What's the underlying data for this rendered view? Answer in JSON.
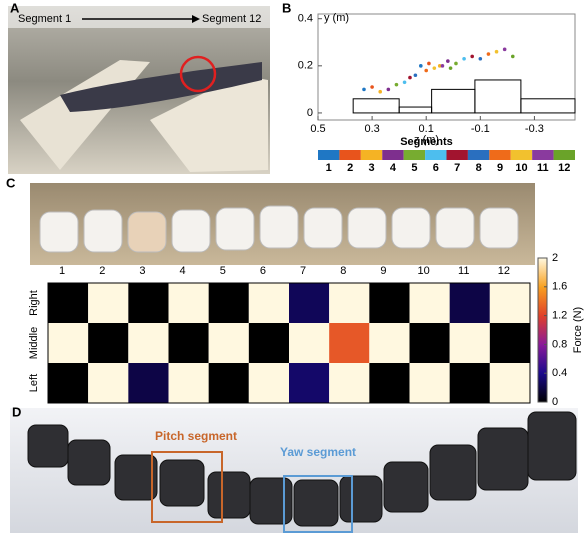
{
  "figure": {
    "panel_a": {
      "letter": "A",
      "start_label": "Segment 1",
      "end_label": "Segment 12"
    },
    "panel_b": {
      "letter": "B"
    },
    "panel_c": {
      "letter": "C"
    },
    "panel_d": {
      "letter": "D",
      "pitch_label": "Pitch segment",
      "yaw_label": "Yaw segment"
    }
  },
  "chart_data": [
    {
      "type": "scatter",
      "x_label": "z (m)",
      "y_label": "y (m)",
      "legend_title": "Segments",
      "xlim": [
        0.5,
        -0.45
      ],
      "ylim": [
        -0.03,
        0.42
      ],
      "xticks": [
        0.5,
        0.3,
        0.1,
        -0.1,
        -0.3
      ],
      "yticks": [
        0,
        0.2,
        0.4
      ],
      "series": [
        {
          "name": "1",
          "color": "#1f77c4",
          "x": [
            0.33,
            0.12
          ],
          "y": [
            0.1,
            0.2
          ]
        },
        {
          "name": "2",
          "color": "#e8541c",
          "x": [
            0.3,
            0.09
          ],
          "y": [
            0.11,
            0.21
          ]
        },
        {
          "name": "3",
          "color": "#f5b324",
          "x": [
            0.27,
            0.05
          ],
          "y": [
            0.09,
            0.2
          ]
        },
        {
          "name": "4",
          "color": "#7e2f8e",
          "x": [
            0.24,
            0.02
          ],
          "y": [
            0.1,
            0.22
          ]
        },
        {
          "name": "5",
          "color": "#77ac30",
          "x": [
            0.21,
            -0.01
          ],
          "y": [
            0.12,
            0.21
          ]
        },
        {
          "name": "6",
          "color": "#4dbeee",
          "x": [
            0.18,
            -0.04
          ],
          "y": [
            0.13,
            0.23
          ]
        },
        {
          "name": "7",
          "color": "#a2142f",
          "x": [
            0.16,
            -0.07
          ],
          "y": [
            0.15,
            0.24
          ]
        },
        {
          "name": "8",
          "color": "#2a6fbf",
          "x": [
            0.14,
            -0.1
          ],
          "y": [
            0.16,
            0.23
          ]
        },
        {
          "name": "9",
          "color": "#ef6b1a",
          "x": [
            0.1,
            -0.13
          ],
          "y": [
            0.18,
            0.25
          ]
        },
        {
          "name": "10",
          "color": "#f2c12e",
          "x": [
            0.07,
            -0.16
          ],
          "y": [
            0.19,
            0.26
          ]
        },
        {
          "name": "11",
          "color": "#8a3a9e",
          "x": [
            0.04,
            -0.19
          ],
          "y": [
            0.2,
            0.27
          ]
        },
        {
          "name": "12",
          "color": "#6aa329",
          "x": [
            0.01,
            -0.22
          ],
          "y": [
            0.19,
            0.24
          ]
        }
      ],
      "outline": {
        "bins": [
          0.37,
          0.2,
          0.08,
          -0.08,
          -0.25,
          -0.45
        ],
        "heights": [
          0.06,
          0.025,
          0.1,
          0.14,
          0.06
        ],
        "color": "#000000"
      }
    },
    {
      "type": "heatmap",
      "colorbar_label": "Force (N)",
      "categories": [
        "1",
        "2",
        "3",
        "4",
        "5",
        "6",
        "7",
        "8",
        "9",
        "10",
        "11",
        "12"
      ],
      "rows": [
        "Right",
        "Middle",
        "Left"
      ],
      "values": [
        [
          0,
          2,
          0,
          2,
          0,
          2,
          0.25,
          2,
          0,
          2,
          0.2,
          2
        ],
        [
          2,
          0,
          2,
          0,
          2,
          0,
          2,
          1.3,
          2,
          0,
          2,
          0
        ],
        [
          0,
          2,
          0.2,
          2,
          0,
          2,
          0.3,
          2,
          0,
          2,
          0,
          2
        ]
      ],
      "clim": [
        0,
        2
      ],
      "cticks": [
        0,
        0.4,
        0.8,
        1.2,
        1.6,
        2
      ],
      "colormap": [
        "#000000",
        "#1a0a8c",
        "#8a1a9a",
        "#e0402a",
        "#f8a020",
        "#fff8e0"
      ]
    }
  ]
}
